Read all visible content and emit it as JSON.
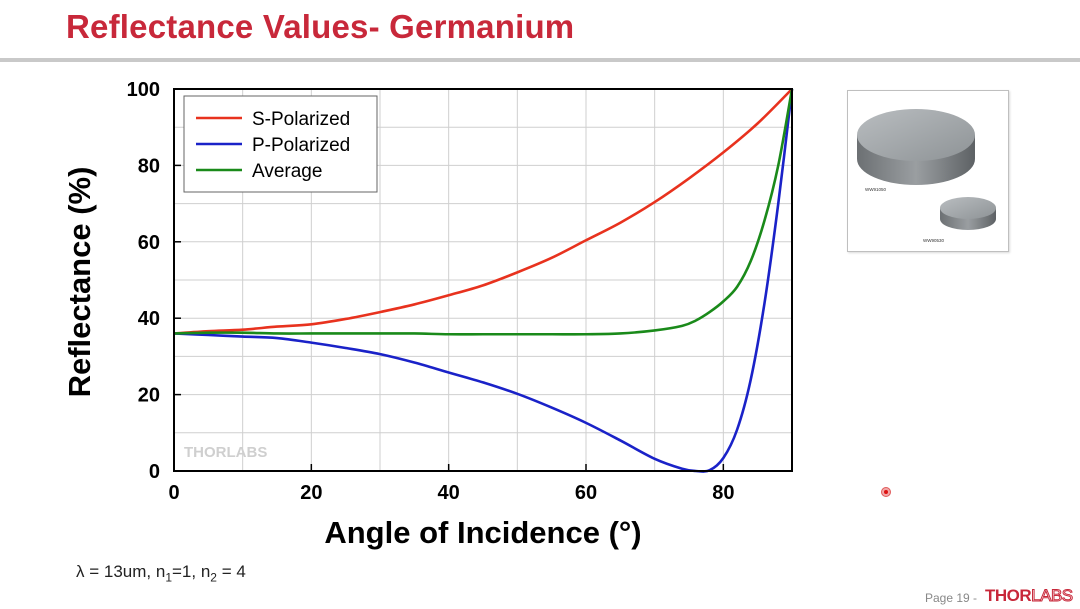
{
  "slide": {
    "title": "Reflectance Values- Germanium",
    "footnote": {
      "lambda": "λ = 13um, n",
      "n1_sub": "1",
      "mid": "=1, n",
      "n2_sub": "2",
      "end": " = 4"
    },
    "page_label": "Page 19 -",
    "logo_thor": "THOR",
    "logo_labs": "LABS",
    "product_image": {
      "large_label": "WW91050",
      "small_label": "WW90530"
    }
  },
  "colors": {
    "s": "#e8321e",
    "p": "#1a22c8",
    "avg": "#1a8a1a",
    "title": "#c8283a"
  },
  "chart_data": {
    "type": "line",
    "xlabel": "Angle of Incidence (°)",
    "ylabel": "Reflectance (%)",
    "xlim": [
      0,
      90
    ],
    "ylim": [
      0,
      100
    ],
    "xticks": [
      0,
      20,
      40,
      60,
      80
    ],
    "yticks": [
      0,
      20,
      40,
      60,
      80,
      100
    ],
    "grid": true,
    "legend_position": "top-left",
    "watermark": "THORLABS",
    "series": [
      {
        "name": "S-Polarized",
        "color": "#e8321e",
        "x": [
          0,
          5,
          10,
          15,
          20,
          25,
          30,
          35,
          40,
          45,
          50,
          55,
          60,
          65,
          70,
          75,
          80,
          85,
          90
        ],
        "y": [
          36,
          36.6,
          37,
          37.8,
          38.4,
          39.8,
          41.6,
          43.6,
          46,
          48.6,
          52,
          55.8,
          60.4,
          65,
          70.4,
          76.6,
          83.4,
          91,
          100
        ]
      },
      {
        "name": "P-Polarized",
        "color": "#1a22c8",
        "x": [
          0,
          5,
          10,
          15,
          20,
          25,
          30,
          35,
          40,
          45,
          50,
          55,
          60,
          65,
          70,
          74,
          76,
          78,
          80,
          82,
          84,
          86,
          88,
          90
        ],
        "y": [
          36,
          35.6,
          35.2,
          34.8,
          33.6,
          32.2,
          30.6,
          28.4,
          25.8,
          23.2,
          20.2,
          16.6,
          12.6,
          8,
          3.2,
          0.6,
          0,
          0.2,
          3.4,
          10.8,
          24,
          44,
          70,
          100
        ]
      },
      {
        "name": "Average",
        "color": "#1a8a1a",
        "x": [
          0,
          5,
          10,
          15,
          20,
          25,
          30,
          35,
          40,
          45,
          50,
          55,
          60,
          65,
          70,
          74,
          76,
          78,
          80,
          82,
          84,
          86,
          88,
          90
        ],
        "y": [
          36,
          36.2,
          36.2,
          36,
          36,
          36,
          36,
          36,
          35.8,
          35.8,
          35.8,
          35.8,
          35.8,
          36,
          36.8,
          38,
          39.4,
          41.6,
          44.4,
          48.2,
          55,
          65.6,
          80,
          100
        ]
      }
    ]
  }
}
